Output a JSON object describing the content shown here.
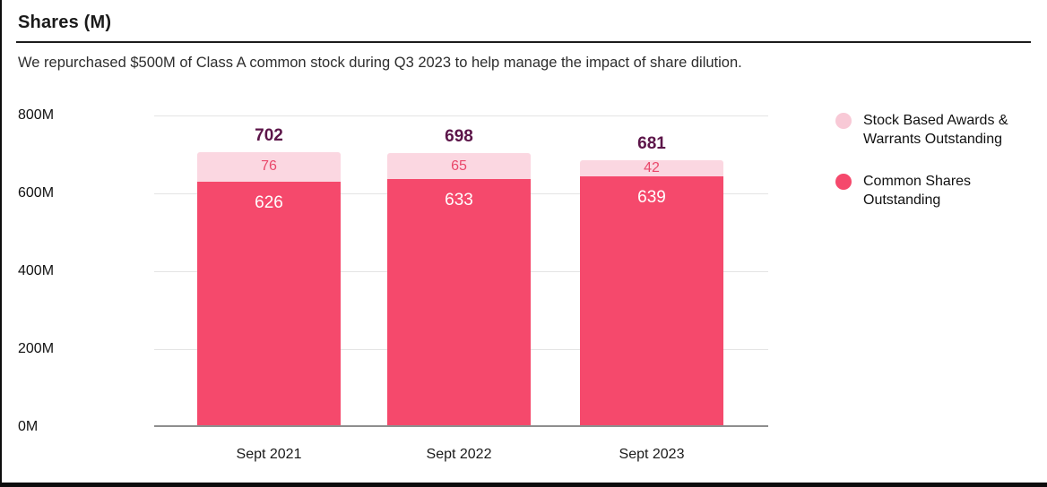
{
  "header": {
    "title": "Shares (M)",
    "subtitle": "We repurchased $500M of Class A common stock during Q3 2023 to help manage the impact of share dilution."
  },
  "legend": {
    "items": [
      {
        "label": "Stock Based Awards & Warrants Outstanding",
        "color": "#F8C9D6"
      },
      {
        "label": "Common Shares Outstanding",
        "color": "#F5496C"
      }
    ]
  },
  "chart_data": {
    "type": "bar",
    "stacked": true,
    "categories": [
      "Sept 2021",
      "Sept 2022",
      "Sept 2023"
    ],
    "series": [
      {
        "name": "Common Shares Outstanding",
        "values": [
          626,
          633,
          639
        ],
        "color": "#F5496C",
        "label_color": "#FFFFFF"
      },
      {
        "name": "Stock Based Awards & Warrants Outstanding",
        "values": [
          76,
          65,
          42
        ],
        "color": "#FBD7E1",
        "label_color": "#E9486B"
      }
    ],
    "totals": [
      702,
      698,
      681
    ],
    "totals_color": "#5C1549",
    "title": "Shares (M)",
    "xlabel": "",
    "ylabel": "",
    "ylim": [
      0,
      800
    ],
    "yticks": [
      {
        "value": 800,
        "label": "800M"
      },
      {
        "value": 600,
        "label": "600M"
      },
      {
        "value": 400,
        "label": "400M"
      },
      {
        "value": 200,
        "label": "200M"
      },
      {
        "value": 0,
        "label": "0M"
      }
    ],
    "grid": true,
    "legend_position": "right",
    "gridline_color": "#E4E4E4",
    "baseline_color": "#8E8E8E"
  }
}
